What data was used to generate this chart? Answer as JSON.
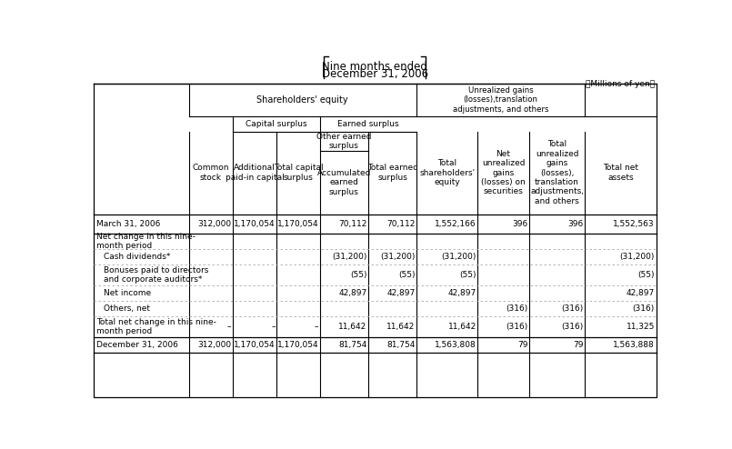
{
  "title_line1": "Nine months ended",
  "title_line2": "December 31, 2006",
  "units_label": "（Millions of yen）",
  "col_headers": {
    "shareholders_equity": "Shareholders' equity",
    "unrealized": "Unrealized gains\n(losses),translation\nadjustments, and others",
    "capital_surplus": "Capital surplus",
    "earned_surplus": "Earned surplus",
    "common_stock": "Common\nstock",
    "additional_paid": "Additional\npaid-in capital",
    "total_capital": "Total capital\nsurplus",
    "other_earned_top": "Other earned\nsurplus",
    "accumulated": "Accumulated\nearned\nsurplus",
    "total_earned": "Total earned\nsurplus",
    "total_shareholders": "Total\nshareholders'\nequity",
    "net_unrealized": "Net\nunrealized\ngains\n(losses) on\nsecurities",
    "total_unrealized": "Total\nunrealized\ngains\n(losses),\ntranslation\nadjustments,\nand others",
    "total_net_assets": "Total net\nassets"
  },
  "rows": [
    {
      "label": "March 31, 2006",
      "indent": 0,
      "bold": false,
      "separator": "solid",
      "values": [
        "312,000",
        "1,170,054",
        "1,170,054",
        "70,112",
        "70,112",
        "1,552,166",
        "396",
        "396",
        "1,552,563"
      ]
    },
    {
      "label": "Net change in this nine-\nmonth period",
      "indent": 0,
      "bold": false,
      "separator": "dashed",
      "values": [
        "",
        "",
        "",
        "",
        "",
        "",
        "",
        "",
        ""
      ]
    },
    {
      "label": "Cash dividends*",
      "indent": 1,
      "bold": false,
      "separator": "dashed",
      "values": [
        "",
        "",
        "",
        "(31,200)",
        "(31,200)",
        "(31,200)",
        "",
        "",
        "(31,200)"
      ]
    },
    {
      "label": "Bonuses paid to directors\nand corporate auditors*",
      "indent": 1,
      "bold": false,
      "separator": "dashed",
      "values": [
        "",
        "",
        "",
        "(55)",
        "(55)",
        "(55)",
        "",
        "",
        "(55)"
      ]
    },
    {
      "label": "Net income",
      "indent": 1,
      "bold": false,
      "separator": "dashed",
      "values": [
        "",
        "",
        "",
        "42,897",
        "42,897",
        "42,897",
        "",
        "",
        "42,897"
      ]
    },
    {
      "label": "Others, net",
      "indent": 1,
      "bold": false,
      "separator": "dashed",
      "values": [
        "",
        "",
        "",
        "",
        "",
        "",
        "(316)",
        "(316)",
        "(316)"
      ]
    },
    {
      "label": "Total net change in this nine-\nmonth period",
      "indent": 0,
      "bold": false,
      "separator": "solid",
      "values": [
        "–",
        "–",
        "–",
        "11,642",
        "11,642",
        "11,642",
        "(316)",
        "(316)",
        "11,325"
      ]
    },
    {
      "label": "December 31, 2006",
      "indent": 0,
      "bold": false,
      "separator": "solid",
      "values": [
        "312,000",
        "1,170,054",
        "1,170,054",
        "81,754",
        "81,754",
        "1,563,808",
        "79",
        "79",
        "1,563,888"
      ]
    }
  ],
  "background_color": "#ffffff",
  "line_color": "#000000",
  "dash_color": "#aaaaaa",
  "font_size": 6.5,
  "font_size_header": 6.5,
  "font_size_title": 8.5,
  "font_size_units": 6.5
}
